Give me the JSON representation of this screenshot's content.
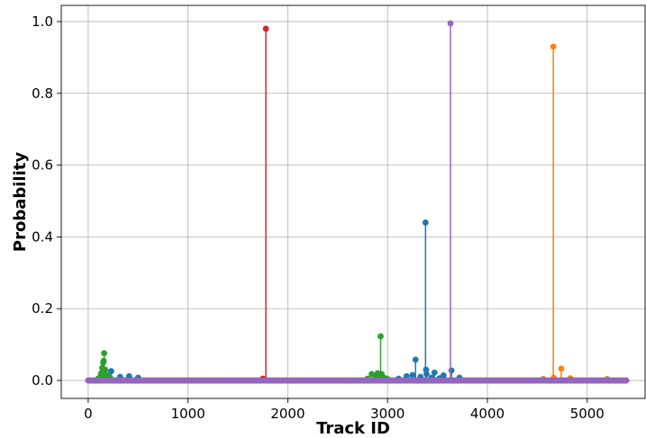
{
  "chart_data": {
    "type": "scatter",
    "style": "stem",
    "title": "",
    "xlabel": "Track ID",
    "ylabel": "Probability",
    "xlim": [
      -270,
      5580
    ],
    "ylim": [
      -0.05,
      1.045
    ],
    "xticks": [
      0,
      1000,
      2000,
      3000,
      4000,
      5000
    ],
    "xtick_labels": [
      "0",
      "1000",
      "2000",
      "3000",
      "4000",
      "5000"
    ],
    "yticks": [
      0.0,
      0.2,
      0.4,
      0.6,
      0.8,
      1.0
    ],
    "ytick_labels": [
      "0.0",
      "0.2",
      "0.4",
      "0.6",
      "0.8",
      "1.0"
    ],
    "grid": true,
    "legend": false,
    "baseline_range": [
      0,
      5400
    ],
    "series": [
      {
        "color": "#1f77b4",
        "x": [
          230,
          320,
          410,
          500,
          3110,
          3190,
          3250,
          3280,
          3330,
          3380,
          3385,
          3390,
          3440,
          3470,
          3520,
          3560,
          3640,
          3720
        ],
        "y": [
          0.026,
          0.01,
          0.012,
          0.008,
          0.005,
          0.012,
          0.015,
          0.058,
          0.01,
          0.44,
          0.03,
          0.018,
          0.008,
          0.022,
          0.006,
          0.014,
          0.028,
          0.008
        ]
      },
      {
        "color": "#ff7f0e",
        "x": [
          4560,
          4660,
          4665,
          4740,
          4830,
          5200
        ],
        "y": [
          0.004,
          0.93,
          0.008,
          0.033,
          0.006,
          0.004
        ]
      },
      {
        "color": "#2ca02c",
        "x": [
          100,
          120,
          130,
          140,
          150,
          155,
          160,
          170,
          190,
          220,
          2800,
          2840,
          2880,
          2900,
          2920,
          2930,
          2940,
          2950,
          2980,
          3000
        ],
        "y": [
          0.005,
          0.01,
          0.02,
          0.035,
          0.05,
          0.055,
          0.076,
          0.03,
          0.015,
          0.008,
          0.005,
          0.018,
          0.014,
          0.02,
          0.016,
          0.123,
          0.018,
          0.01,
          0.006,
          0.004
        ]
      },
      {
        "color": "#d62728",
        "x": [
          1750,
          1780
        ],
        "y": [
          0.005,
          0.98
        ]
      },
      {
        "color": "#9467bd",
        "x": [
          3630
        ],
        "y": [
          0.995
        ]
      }
    ]
  }
}
